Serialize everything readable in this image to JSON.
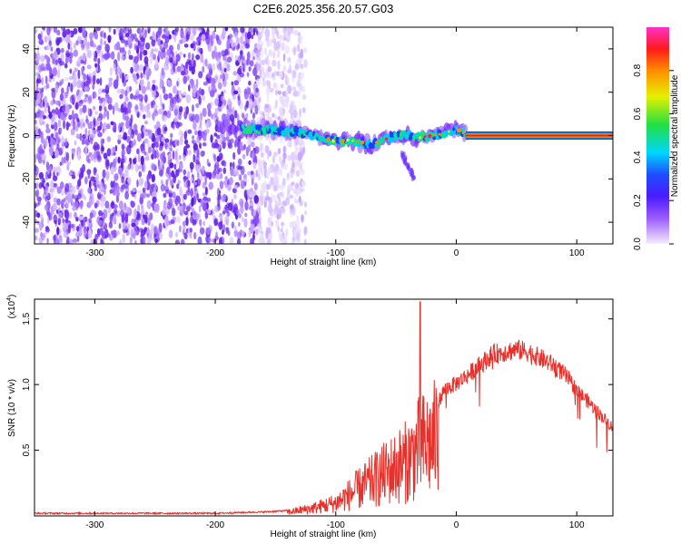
{
  "title": "C2E6.2025.356.20.57.G03",
  "chart_data": [
    {
      "type": "heatmap",
      "name": "spectrogram",
      "xlabel": "Height of straight line (km)",
      "ylabel": "Frequency (Hz)",
      "xlim": [
        -350,
        130
      ],
      "ylim": [
        -50,
        50
      ],
      "xticks": [
        -300,
        -200,
        -100,
        0,
        100
      ],
      "yticks": [
        -40,
        -20,
        0,
        20,
        40
      ],
      "colorbar": {
        "label": "Normalized spectral amplitude",
        "range": [
          0,
          1
        ],
        "ticks": [
          0.0,
          0.2,
          0.4,
          0.6,
          0.8
        ],
        "colors": [
          "#f0e4ff",
          "#7a2cff",
          "#2040ff",
          "#00d8ff",
          "#20e040",
          "#f0f000",
          "#ff8000",
          "#ff1010",
          "#ff30c8"
        ]
      },
      "noise_region": {
        "x_from": -350,
        "x_to": -140
      },
      "signal_ridge": [
        {
          "x": -195,
          "y": 4
        },
        {
          "x": -175,
          "y": 3
        },
        {
          "x": -160,
          "y": 3
        },
        {
          "x": -140,
          "y": 2
        },
        {
          "x": -125,
          "y": 1
        },
        {
          "x": -110,
          "y": -1
        },
        {
          "x": -100,
          "y": -3
        },
        {
          "x": -90,
          "y": -2
        },
        {
          "x": -80,
          "y": -3
        },
        {
          "x": -70,
          "y": -4
        },
        {
          "x": -60,
          "y": -2
        },
        {
          "x": -50,
          "y": 0
        },
        {
          "x": -40,
          "y": 0
        },
        {
          "x": -30,
          "y": -1
        },
        {
          "x": -20,
          "y": 0
        },
        {
          "x": -10,
          "y": 1
        },
        {
          "x": 0,
          "y": 3
        },
        {
          "x": 10,
          "y": 0
        },
        {
          "x": 130,
          "y": 0
        }
      ],
      "tail_feature": {
        "x_from": -45,
        "x_to": -35,
        "y_from": -8,
        "y_to": -20
      }
    },
    {
      "type": "line",
      "name": "snr",
      "xlabel": "Height of straight line (km)",
      "ylabel": "SNR (10 * v/v)",
      "y_multiplier_label": "(x10",
      "y_multiplier_exp": "4",
      "y_multiplier_close": ")",
      "xlim": [
        -350,
        130
      ],
      "ylim": [
        0,
        1.65
      ],
      "xticks": [
        -300,
        -200,
        -100,
        0,
        100
      ],
      "yticks": [
        0.5,
        1.0,
        1.5
      ],
      "yticklabels": [
        "0.5",
        "1.0",
        "1.5"
      ],
      "color": "#e8302a",
      "envelope": [
        {
          "x": -350,
          "y": 0.02
        },
        {
          "x": -200,
          "y": 0.02
        },
        {
          "x": -160,
          "y": 0.03
        },
        {
          "x": -140,
          "y": 0.04
        },
        {
          "x": -120,
          "y": 0.08
        },
        {
          "x": -100,
          "y": 0.14
        },
        {
          "x": -80,
          "y": 0.3
        },
        {
          "x": -60,
          "y": 0.45
        },
        {
          "x": -40,
          "y": 0.6
        },
        {
          "x": -30,
          "y": 0.75
        },
        {
          "x": -20,
          "y": 0.8
        },
        {
          "x": -10,
          "y": 1.0
        },
        {
          "x": 0,
          "y": 1.05
        },
        {
          "x": 10,
          "y": 1.12
        },
        {
          "x": 20,
          "y": 1.2
        },
        {
          "x": 30,
          "y": 1.28
        },
        {
          "x": 40,
          "y": 1.3
        },
        {
          "x": 50,
          "y": 1.32
        },
        {
          "x": 60,
          "y": 1.3
        },
        {
          "x": 70,
          "y": 1.25
        },
        {
          "x": 80,
          "y": 1.2
        },
        {
          "x": 90,
          "y": 1.12
        },
        {
          "x": 100,
          "y": 1.0
        },
        {
          "x": 110,
          "y": 0.9
        },
        {
          "x": 120,
          "y": 0.8
        },
        {
          "x": 130,
          "y": 0.7
        }
      ],
      "peak": {
        "x": -30,
        "y": 1.63
      }
    }
  ]
}
